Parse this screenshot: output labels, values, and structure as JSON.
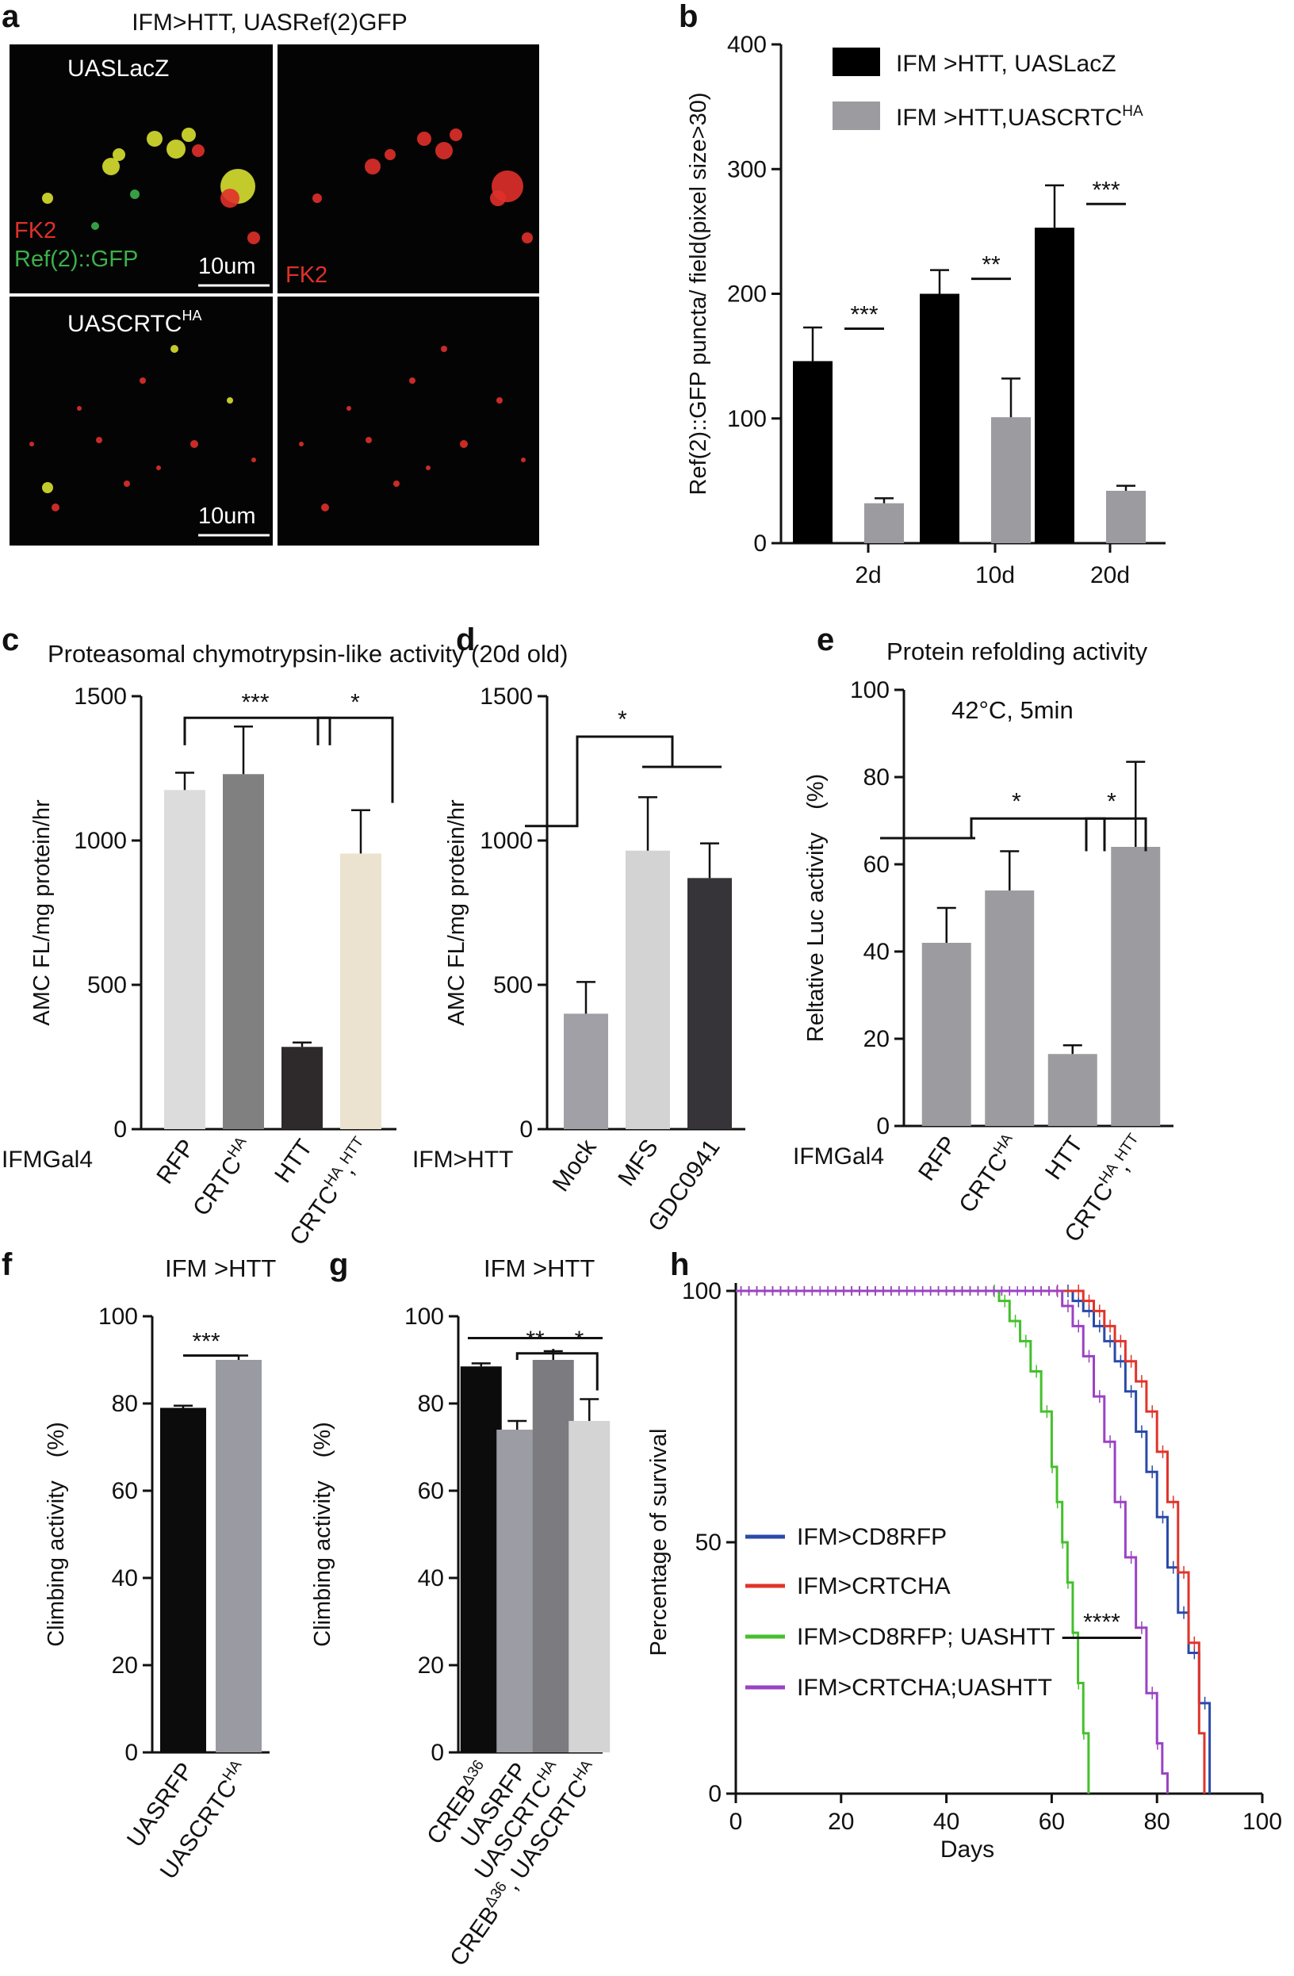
{
  "figure_title": "",
  "panels": {
    "a": {
      "label": "a",
      "title": "IFM>HTT, UASRef(2)GFP",
      "row1_label": "UASLacZ",
      "row2_label_main": "UASCRTC",
      "row2_label_sup": "HA",
      "stain_fk2": "FK2",
      "stain_ref": "Ref(2)::GFP",
      "scale_bar": "10um",
      "colors": {
        "red": "#e0302a",
        "green": "#3cb04a",
        "yellow": "#d8e030",
        "bg": "#040404"
      }
    },
    "b": {
      "label": "b"
    },
    "c": {
      "label": "c"
    },
    "d": {
      "label": "d"
    },
    "e": {
      "label": "e",
      "note": "42°C, 5min"
    },
    "f": {
      "label": "f"
    },
    "g": {
      "label": "g"
    },
    "h": {
      "label": "h"
    }
  },
  "chart_data": [
    {
      "id": "b",
      "type": "bar",
      "title": "",
      "ylabel": "Ref(2)::GFP puncta/ field(pixel size>30)",
      "xlabel": "",
      "ylim": [
        0,
        400
      ],
      "yticks": [
        0,
        100,
        200,
        300,
        400
      ],
      "ytick_labels": [
        "0",
        "100",
        "200",
        "300",
        "400"
      ],
      "categories": [
        "2d",
        "10d",
        "20d"
      ],
      "series": [
        {
          "name": "IFM >HTT, UASLacZ",
          "color": "#000000",
          "values": [
            146,
            200,
            253
          ],
          "errors": [
            27,
            19,
            34
          ]
        },
        {
          "name": "IFM >HTT,UASCRTC",
          "name_sup": "HA",
          "color": "#9b9ba0",
          "values": [
            32,
            101,
            42
          ],
          "errors": [
            4,
            31,
            4
          ]
        }
      ],
      "significance": [
        "***",
        "**",
        "***"
      ],
      "legend": "top-right"
    },
    {
      "id": "c",
      "type": "bar",
      "title": "Proteasomal chymotrypsin-like  activity (20d old)",
      "ylabel": "AMC FL/mg protein/hr",
      "xlabel": "IFMGal4",
      "ylim": [
        0,
        1500
      ],
      "yticks": [
        0,
        500,
        1000,
        1500
      ],
      "ytick_labels": [
        "0",
        "500",
        "1000",
        "1500"
      ],
      "categories": [
        "RFP",
        "CRTC|HA",
        "HTT",
        "CRTC|HA|,|HTT"
      ],
      "values": [
        1175,
        1230,
        285,
        955
      ],
      "errors": [
        60,
        165,
        15,
        150
      ],
      "colors": [
        "#dcdcdc",
        "#808080",
        "#2e2a2c",
        "#ebe3cf"
      ],
      "significance": [
        "***",
        "*"
      ]
    },
    {
      "id": "d",
      "type": "bar",
      "title": "",
      "ylabel": "AMC FL/mg protein/hr",
      "xlabel": "IFM>HTT",
      "ylim": [
        0,
        1500
      ],
      "yticks": [
        0,
        500,
        1000,
        1500
      ],
      "ytick_labels": [
        "0",
        "500",
        "1000",
        "1500"
      ],
      "categories": [
        "Mock",
        "MFS",
        "GDC0941"
      ],
      "values": [
        400,
        965,
        870
      ],
      "errors": [
        110,
        185,
        120
      ],
      "colors": [
        "#a0a0a6",
        "#d3d3d3",
        "#363438"
      ],
      "significance": [
        "*"
      ]
    },
    {
      "id": "e",
      "type": "bar",
      "title": "Protein refolding activity",
      "ylabel": "Reltative  Luc activity　(%)",
      "xlabel": "IFMGal4",
      "ylim": [
        0,
        100
      ],
      "yticks": [
        0,
        20,
        40,
        60,
        80,
        100
      ],
      "ytick_labels": [
        "0",
        "20",
        "40",
        "60",
        "80",
        "100"
      ],
      "categories": [
        "RFP",
        "CRTC|HA",
        "HTT",
        "CRTC|HA|,|HTT"
      ],
      "values": [
        42,
        54,
        16.5,
        64
      ],
      "errors": [
        8,
        9,
        2,
        19.5
      ],
      "colors": [
        "#9c9ca0",
        "#9c9ca0",
        "#9c9ca0",
        "#9c9ca0"
      ],
      "significance": [
        "*",
        "*"
      ]
    },
    {
      "id": "f",
      "type": "bar",
      "title": "IFM >HTT",
      "ylabel": "Climbing activity　(%)",
      "xlabel": "",
      "ylim": [
        0,
        100
      ],
      "yticks": [
        0,
        20,
        40,
        60,
        80,
        100
      ],
      "ytick_labels": [
        "0",
        "20",
        "40",
        "60",
        "80",
        "100"
      ],
      "categories": [
        "UASRFP",
        "UASCRTC|HA"
      ],
      "values": [
        79,
        90
      ],
      "errors": [
        0.5,
        1
      ],
      "colors": [
        "#0c0c0c",
        "#9a9aa2"
      ],
      "significance": [
        "***"
      ]
    },
    {
      "id": "g",
      "type": "bar",
      "title": "IFM >HTT",
      "ylabel": "Climbing activity　(%)",
      "xlabel": "",
      "ylim": [
        0,
        100
      ],
      "yticks": [
        0,
        20,
        40,
        60,
        80,
        100
      ],
      "ytick_labels": [
        "0",
        "20",
        "40",
        "60",
        "80",
        "100"
      ],
      "categories": [
        "CREB|Δ36",
        "UASRFP",
        "UASCRTC|HA",
        "CREB|Δ36|, UASCRTC|HA"
      ],
      "values": [
        88.5,
        74,
        90,
        76
      ],
      "errors": [
        0.7,
        2,
        2,
        5
      ],
      "colors": [
        "#0c0c0c",
        "#9c9ca4",
        "#7c7c80",
        "#d4d4d4"
      ],
      "significance": [
        "**",
        "*"
      ]
    },
    {
      "id": "h",
      "type": "line",
      "title": "",
      "ylabel": "Percentage of survival",
      "xlabel": "Days",
      "xlim": [
        0,
        100
      ],
      "ylim": [
        0,
        100
      ],
      "xticks": [
        0,
        20,
        40,
        60,
        80,
        100
      ],
      "xtick_labels": [
        "0",
        "20",
        "40",
        "60",
        "80",
        "100"
      ],
      "yticks": [
        0,
        50,
        100
      ],
      "ytick_labels": [
        "0",
        "50",
        "100"
      ],
      "series": [
        {
          "name": "IFM>CD8RFP",
          "color": "#2a4aa8",
          "x": [
            0,
            60,
            64,
            66,
            68,
            70,
            72,
            74,
            76,
            78,
            80,
            82,
            84,
            86,
            88,
            90,
            90
          ],
          "y": [
            100,
            100,
            98,
            96,
            93,
            90,
            86,
            80,
            72,
            64,
            55,
            45,
            36,
            28,
            18,
            8,
            0
          ]
        },
        {
          "name": "IFM>CRTCHA",
          "color": "#e0342a",
          "x": [
            0,
            62,
            66,
            68,
            70,
            72,
            74,
            76,
            78,
            80,
            82,
            84,
            86,
            88,
            89
          ],
          "y": [
            100,
            100,
            98,
            96,
            93,
            90,
            86,
            82,
            76,
            68,
            58,
            44,
            30,
            12,
            0
          ]
        },
        {
          "name": "IFM>CD8RFP; UASHTT",
          "color": "#44c02c",
          "x": [
            0,
            48,
            50,
            52,
            54,
            56,
            58,
            60,
            61,
            62,
            63,
            64,
            65,
            66,
            67,
            67
          ],
          "y": [
            100,
            100,
            98,
            94,
            90,
            84,
            76,
            65,
            58,
            50,
            42,
            32,
            22,
            12,
            4,
            0
          ]
        },
        {
          "name": "IFM>CRTCHA;UASHTT",
          "color": "#9a42c4",
          "x": [
            0,
            60,
            62,
            64,
            66,
            68,
            70,
            72,
            74,
            76,
            78,
            80,
            81,
            82
          ],
          "y": [
            100,
            100,
            97,
            93,
            87,
            79,
            70,
            58,
            47,
            33,
            20,
            10,
            4,
            0
          ]
        }
      ],
      "significance": [
        "****"
      ],
      "legend": "center-left"
    }
  ]
}
